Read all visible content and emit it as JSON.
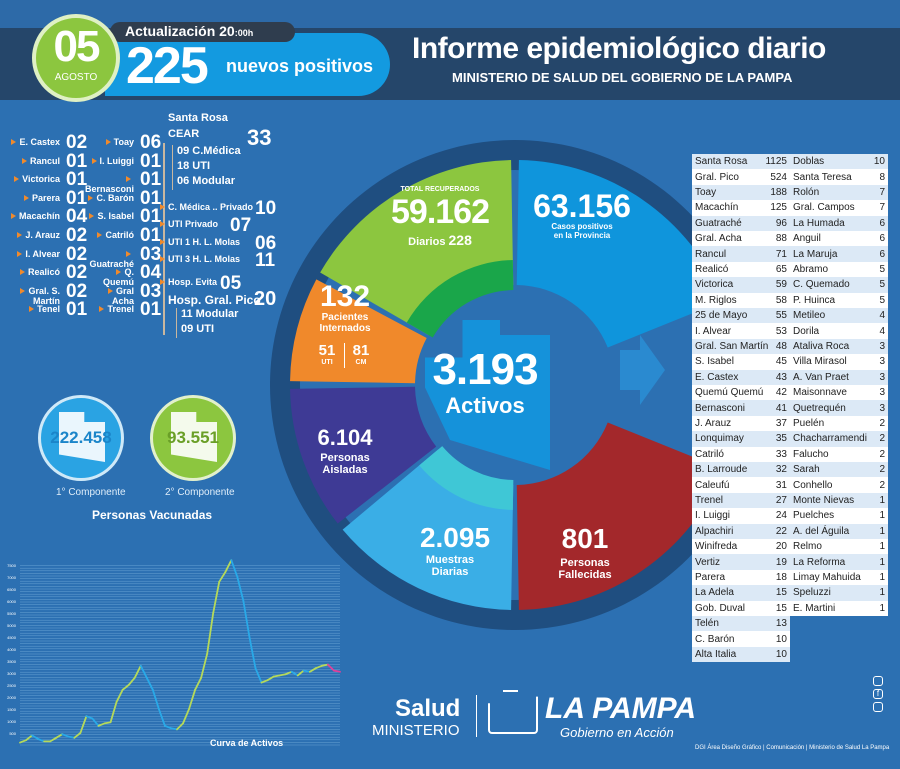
{
  "header": {
    "day": "05",
    "month": "AGOSTO",
    "update": "Actualización 20",
    "update_suffix": ":00h",
    "new_positives": "225",
    "new_positives_label": "nuevos positivos",
    "title": "Informe epidemiológico diario",
    "subtitle": "MINISTERIO DE SALUD DEL GOBIERNO DE LA PAMPA"
  },
  "localities_left": [
    {
      "name": "E. Castex",
      "n": "02"
    },
    {
      "name": "Rancul",
      "n": "01"
    },
    {
      "name": "Victorica",
      "n": "01"
    },
    {
      "name": "Parera",
      "n": "01"
    },
    {
      "name": "Macachín",
      "n": "04"
    },
    {
      "name": "J. Arauz",
      "n": "02"
    },
    {
      "name": "I. Alvear",
      "n": "02"
    },
    {
      "name": "Realicó",
      "n": "02"
    },
    {
      "name": "Gral. S. Martín",
      "n": "02"
    },
    {
      "name": "Tenel",
      "n": "01"
    }
  ],
  "localities_mid": [
    {
      "name": "Toay",
      "n": "06"
    },
    {
      "name": "I. Luiggi",
      "n": "01"
    },
    {
      "name": "Bernasconi",
      "n": "01"
    },
    {
      "name": "C. Barón",
      "n": "01"
    },
    {
      "name": "S. Isabel",
      "n": "01"
    },
    {
      "name": "Catriló",
      "n": "01"
    },
    {
      "name": "Guatraché",
      "n": "03"
    },
    {
      "name": "Q. Quemú",
      "n": "04"
    },
    {
      "name": "Gral Acha",
      "n": "03"
    },
    {
      "name": "Trenel",
      "n": "01"
    }
  ],
  "hospitals": {
    "santa_rosa": "Santa Rosa",
    "cear": "CEAR",
    "cear_total": "33",
    "cear_items": [
      "09 C.Médica",
      "18 UTI",
      "06 Modular"
    ],
    "items": [
      {
        "name": "C. Médica .. Privado",
        "n": "10"
      },
      {
        "name": "UTI Privado",
        "n": "07"
      },
      {
        "name": "UTI 1 H. L. Molas",
        "n": "06"
      },
      {
        "name": "UTI 3 H. L. Molas",
        "n": "11"
      },
      {
        "name": "Hosp. Evita",
        "n": "05"
      }
    ],
    "pico": "Hosp. Gral. Pico",
    "pico_total": "20",
    "pico_items": [
      "11 Modular",
      "09 UTI"
    ]
  },
  "vaccination": {
    "c1_value": "222.458",
    "c1_label": "1° Componente",
    "c2_value": "93.551",
    "c2_label": "2° Componente",
    "title": "Personas Vacunadas"
  },
  "center": {
    "active": "3.193",
    "active_label": "Activos",
    "recovered_title": "TOTAL RECUPERADOS",
    "recovered": "59.162",
    "recovered_daily_label": "Diarios",
    "recovered_daily": "228",
    "positives": "63.156",
    "positives_label1": "Casos positivos",
    "positives_label2": "en la Provincia",
    "hospitalized": "132",
    "hospitalized_label1": "Pacientes",
    "hospitalized_label2": "Internados",
    "uti": "51",
    "uti_label": "UTI",
    "cm": "81",
    "cm_label": "CM",
    "isolated": "6.104",
    "isolated_label1": "Personas",
    "isolated_label2": "Aisladas",
    "samples": "2.095",
    "samples_label1": "Muestras",
    "samples_label2": "Diarias",
    "deaths": "801",
    "deaths_label1": "Personas",
    "deaths_label2": "Fallecidas"
  },
  "table_left": [
    [
      "Santa Rosa",
      "1125"
    ],
    [
      "Gral. Pico",
      "524"
    ],
    [
      "Toay",
      "188"
    ],
    [
      "Macachín",
      "125"
    ],
    [
      "Guatraché",
      "96"
    ],
    [
      "Gral. Acha",
      "88"
    ],
    [
      "Rancul",
      "71"
    ],
    [
      "Realicó",
      "65"
    ],
    [
      "Victorica",
      "59"
    ],
    [
      "M. Riglos",
      "58"
    ],
    [
      "25 de Mayo",
      "55"
    ],
    [
      "I. Alvear",
      "53"
    ],
    [
      "Gral. San Martín",
      "48"
    ],
    [
      "S. Isabel",
      "45"
    ],
    [
      "E. Castex",
      "43"
    ],
    [
      "Quemú Quemú",
      "42"
    ],
    [
      "Bernasconi",
      "41"
    ],
    [
      "J. Arauz",
      "37"
    ],
    [
      "Lonquimay",
      "35"
    ],
    [
      "Catriló",
      "33"
    ],
    [
      "B. Larroude",
      "32"
    ],
    [
      "Caleufú",
      "31"
    ],
    [
      "Trenel",
      "27"
    ],
    [
      "I. Luiggi",
      "24"
    ],
    [
      "Alpachiri",
      "22"
    ],
    [
      "Winifreda",
      "20"
    ],
    [
      "Vertiz",
      "19"
    ],
    [
      "Parera",
      "18"
    ],
    [
      "La Adela",
      "15"
    ],
    [
      "Gob. Duval",
      "15"
    ],
    [
      "Telén",
      "13"
    ],
    [
      "C. Barón",
      "10"
    ],
    [
      "Alta Italia",
      "10"
    ]
  ],
  "table_right": [
    [
      "Doblas",
      "10"
    ],
    [
      "Santa Teresa",
      "8"
    ],
    [
      "Rolón",
      "7"
    ],
    [
      "Gral. Campos",
      "7"
    ],
    [
      "La Humada",
      "6"
    ],
    [
      "Anguil",
      "6"
    ],
    [
      "La Maruja",
      "6"
    ],
    [
      "Abramo",
      "5"
    ],
    [
      "C. Quemado",
      "5"
    ],
    [
      "P. Huinca",
      "5"
    ],
    [
      "Metileo",
      "4"
    ],
    [
      "Dorila",
      "4"
    ],
    [
      "Ataliva Roca",
      "3"
    ],
    [
      "Villa Mirasol",
      "3"
    ],
    [
      "A. Van Praet",
      "3"
    ],
    [
      "Maisonnave",
      "3"
    ],
    [
      "Quetrequén",
      "3"
    ],
    [
      "Puelén",
      "2"
    ],
    [
      "Chacharramendi",
      "2"
    ],
    [
      "Falucho",
      "2"
    ],
    [
      "Sarah",
      "2"
    ],
    [
      "Conhello",
      "2"
    ],
    [
      "Monte Nievas",
      "1"
    ],
    [
      "Puelches",
      "1"
    ],
    [
      "A. del Águila",
      "1"
    ],
    [
      "Relmo",
      "1"
    ],
    [
      "La Reforma",
      "1"
    ],
    [
      "Limay Mahuida",
      "1"
    ],
    [
      "Speluzzi",
      "1"
    ],
    [
      "E. Martini",
      "1"
    ]
  ],
  "chart_data": {
    "type": "line",
    "title": "Curva de Activos",
    "xlabel": "",
    "ylabel": "",
    "ylim": [
      0,
      7800
    ],
    "yticks": [
      "500",
      "1000",
      "1500",
      "2000",
      "2500",
      "3000",
      "3500",
      "4000",
      "4500",
      "5000",
      "5500",
      "6000",
      "6500",
      "7000",
      "7500"
    ],
    "values": [
      100,
      200,
      400,
      250,
      150,
      150,
      300,
      450,
      350,
      300,
      500,
      1200,
      1100,
      800,
      900,
      950,
      1800,
      2300,
      2500,
      2800,
      3300,
      2800,
      2300,
      1500,
      800,
      700,
      650,
      900,
      1500,
      2300,
      2800,
      3800,
      5500,
      6800,
      7200,
      7700,
      7000,
      6000,
      4500,
      3200,
      2600,
      2700,
      2850,
      2900,
      2950,
      3050,
      2900,
      3100,
      3050,
      3200,
      3300,
      3350,
      3100,
      3050
    ],
    "colors": {
      "rising": "#b5d95a",
      "falling": "#29a9e8",
      "latest": "#e0409a"
    }
  },
  "footer": {
    "salud": "Salud",
    "ministerio": "MINISTERIO",
    "brand": "LA PAMPA",
    "slogan": "Gobierno en Acción",
    "credits": "DGI Área Diseño Gráfico  | Comunicación | Ministerio de Salud La Pampa"
  },
  "colors": {
    "green": "#8cc63f",
    "blue": "#0f95dc",
    "orange": "#f0892b",
    "purple": "#3e3a95",
    "lightblue": "#3aaee6",
    "red": "#a3282b"
  }
}
